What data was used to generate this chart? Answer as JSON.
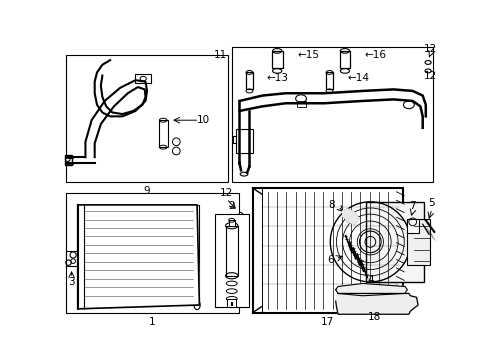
{
  "background_color": "#ffffff",
  "line_color": "#000000",
  "fig_width": 4.89,
  "fig_height": 3.6,
  "dpi": 100,
  "font_size": 7.5
}
